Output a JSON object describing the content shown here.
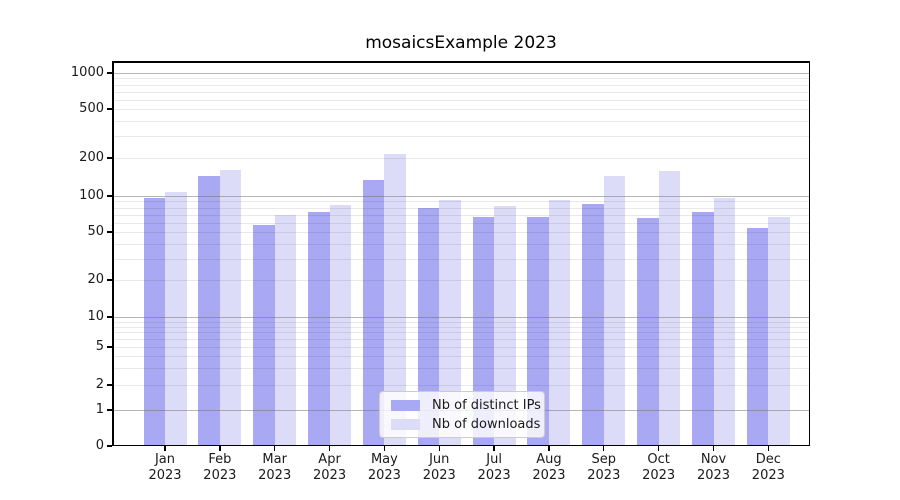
{
  "chart_data": {
    "type": "bar",
    "title": "mosaicsExample 2023",
    "categories": [
      "Jan",
      "Feb",
      "Mar",
      "Apr",
      "May",
      "Jun",
      "Jul",
      "Aug",
      "Sep",
      "Oct",
      "Nov",
      "Dec"
    ],
    "x_tick_second_line": "2023",
    "series": [
      {
        "name": "Nb of distinct IPs",
        "color": "#a9a9f3",
        "values": [
          96,
          145,
          57,
          73,
          135,
          79,
          67,
          67,
          85,
          65,
          74,
          54
        ]
      },
      {
        "name": "Nb of downloads",
        "color": "#dcdcf8",
        "values": [
          107,
          160,
          70,
          84,
          214,
          93,
          82,
          93,
          143,
          158,
          97,
          67
        ]
      }
    ],
    "yscale": "symlog",
    "yticks": [
      0,
      1,
      2,
      5,
      10,
      20,
      50,
      100,
      200,
      500,
      1000
    ],
    "ylim": [
      0,
      1250
    ],
    "xlabel": "",
    "ylabel": "",
    "grid": true,
    "legend_position": "lower center",
    "colors": {
      "spine": "#000000",
      "major_grid": "#c3c3c3",
      "minor_grid": "#eaeaea",
      "text": "#1a1a1a",
      "background": "#ffffff"
    }
  }
}
